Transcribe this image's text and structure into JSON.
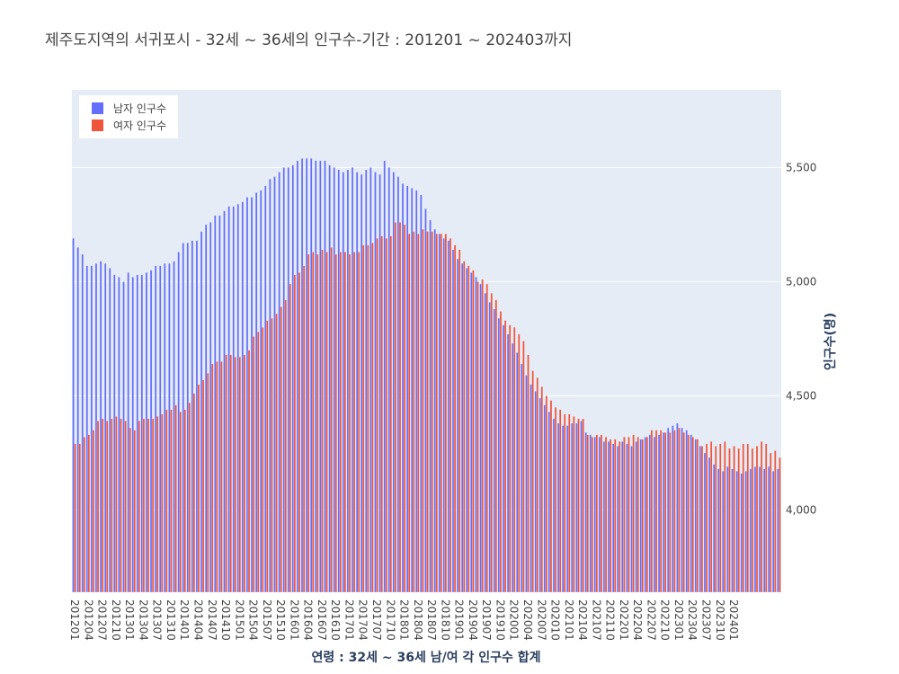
{
  "chart_data": {
    "type": "bar",
    "title": "제주도지역의 서귀포시 - 32세 ~ 36세의 인구수-기간 : 201201 ~ 202403까지",
    "xlabel": "연령 : 32세 ~ 36세 남/여 각 인구수 합계",
    "ylabel": "인구수(명)",
    "ylim": [
      3640,
      5840
    ],
    "yticks": [
      4000,
      4500,
      5000,
      5500
    ],
    "ytick_labels": [
      "4,000",
      "4,500",
      "5,000",
      "5,500"
    ],
    "x_tick_labels": [
      "201201",
      "201204",
      "201207",
      "201210",
      "201301",
      "201304",
      "201307",
      "201310",
      "201401",
      "201404",
      "201407",
      "201410",
      "201501",
      "201504",
      "201507",
      "201510",
      "201601",
      "201604",
      "201607",
      "201610",
      "201701",
      "201704",
      "201707",
      "201710",
      "201801",
      "201804",
      "201807",
      "201810",
      "201901",
      "201904",
      "201907",
      "201910",
      "202001",
      "202004",
      "202007",
      "202010",
      "202101",
      "202104",
      "202107",
      "202110",
      "202201",
      "202204",
      "202207",
      "202210",
      "202301",
      "202304",
      "202307",
      "202310",
      "202401"
    ],
    "start_month": "201201",
    "end_month": "202403",
    "barmode": "group",
    "legend_position": "top-left",
    "grid": true,
    "series": [
      {
        "name": "남자 인구수",
        "color": "#636efa",
        "values": [
          5190,
          5150,
          5120,
          5070,
          5070,
          5080,
          5090,
          5080,
          5060,
          5030,
          5020,
          5000,
          5040,
          5020,
          5030,
          5030,
          5040,
          5050,
          5070,
          5070,
          5080,
          5080,
          5090,
          5130,
          5170,
          5170,
          5180,
          5180,
          5220,
          5250,
          5260,
          5290,
          5290,
          5310,
          5330,
          5330,
          5340,
          5350,
          5370,
          5370,
          5390,
          5400,
          5420,
          5450,
          5460,
          5480,
          5500,
          5500,
          5510,
          5530,
          5540,
          5540,
          5540,
          5530,
          5530,
          5530,
          5510,
          5500,
          5490,
          5480,
          5490,
          5500,
          5480,
          5470,
          5490,
          5500,
          5480,
          5470,
          5530,
          5500,
          5480,
          5460,
          5430,
          5420,
          5410,
          5400,
          5380,
          5320,
          5270,
          5230,
          5210,
          5190,
          5180,
          5140,
          5100,
          5080,
          5060,
          5040,
          5020,
          4990,
          4950,
          4910,
          4880,
          4840,
          4810,
          4770,
          4730,
          4690,
          4640,
          4590,
          4550,
          4520,
          4490,
          4460,
          4430,
          4400,
          4380,
          4370,
          4370,
          4380,
          4380,
          4390,
          4340,
          4330,
          4320,
          4320,
          4300,
          4300,
          4290,
          4280,
          4300,
          4290,
          4280,
          4300,
          4310,
          4320,
          4330,
          4320,
          4330,
          4340,
          4360,
          4370,
          4380,
          4360,
          4350,
          4330,
          4310,
          4280,
          4250,
          4230,
          4200,
          4180,
          4170,
          4190,
          4180,
          4170,
          4160,
          4170,
          4180,
          4190,
          4190,
          4180,
          4190,
          4170,
          4180
        ]
      },
      {
        "name": "여자 인구수",
        "color": "#ef553b",
        "values": [
          4290,
          4290,
          4320,
          4330,
          4350,
          4390,
          4400,
          4390,
          4400,
          4410,
          4400,
          4390,
          4360,
          4350,
          4390,
          4400,
          4400,
          4400,
          4410,
          4420,
          4440,
          4440,
          4460,
          4430,
          4440,
          4470,
          4510,
          4550,
          4570,
          4600,
          4640,
          4650,
          4650,
          4680,
          4680,
          4670,
          4670,
          4680,
          4700,
          4760,
          4780,
          4800,
          4830,
          4840,
          4860,
          4890,
          4920,
          4990,
          5030,
          5040,
          5070,
          5120,
          5130,
          5120,
          5140,
          5130,
          5150,
          5120,
          5130,
          5130,
          5120,
          5130,
          5130,
          5160,
          5160,
          5170,
          5190,
          5200,
          5190,
          5200,
          5260,
          5260,
          5250,
          5210,
          5220,
          5210,
          5230,
          5220,
          5220,
          5210,
          5210,
          5210,
          5190,
          5160,
          5140,
          5090,
          5070,
          5050,
          5000,
          5010,
          4990,
          4950,
          4920,
          4870,
          4830,
          4810,
          4800,
          4770,
          4740,
          4680,
          4610,
          4580,
          4540,
          4500,
          4480,
          4450,
          4440,
          4420,
          4420,
          4410,
          4400,
          4400,
          4330,
          4320,
          4330,
          4330,
          4320,
          4310,
          4310,
          4300,
          4320,
          4320,
          4330,
          4320,
          4310,
          4320,
          4350,
          4350,
          4350,
          4340,
          4340,
          4350,
          4360,
          4340,
          4330,
          4320,
          4310,
          4280,
          4290,
          4300,
          4280,
          4290,
          4300,
          4270,
          4280,
          4270,
          4290,
          4290,
          4270,
          4280,
          4300,
          4290,
          4250,
          4260,
          4230
        ]
      }
    ]
  }
}
